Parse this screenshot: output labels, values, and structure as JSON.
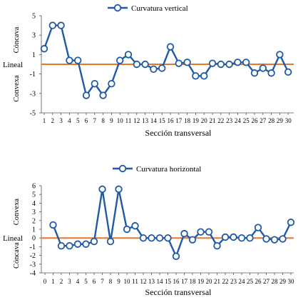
{
  "chart_data": [
    {
      "type": "line",
      "title": "Curvatura vertical",
      "xlabel": "Sección transversal",
      "ylabel_top": "Cóncava",
      "ylabel_mid": "Lineal",
      "ylabel_bottom": "Convexa",
      "ylim": [
        -5,
        5
      ],
      "yticks": [
        -5,
        -3,
        -1,
        1,
        3,
        5
      ],
      "categories": [
        1,
        2,
        3,
        4,
        5,
        6,
        7,
        8,
        9,
        10,
        11,
        12,
        13,
        14,
        15,
        16,
        17,
        18,
        19,
        20,
        21,
        22,
        23,
        24,
        25,
        26,
        27,
        28,
        29,
        30
      ],
      "series": [
        {
          "name": "Curvatura vertical",
          "color": "#1f5aa6",
          "values": [
            1.6,
            4.0,
            4.0,
            0.4,
            0.4,
            -3.2,
            -2.0,
            -3.2,
            -2.0,
            0.4,
            1.0,
            0.0,
            0.0,
            -0.5,
            -0.4,
            1.8,
            0.1,
            0.2,
            -1.2,
            -1.2,
            0.1,
            0.0,
            0.0,
            0.2,
            0.2,
            -0.9,
            -0.4,
            -0.9,
            1.0,
            -0.8
          ]
        }
      ],
      "reference_line": {
        "value": 0,
        "color": "#e8762b"
      },
      "grid": false
    },
    {
      "type": "line",
      "title": "Curvatura horizontal",
      "xlabel": "Sección transversal",
      "ylabel_top": "Convexa",
      "ylabel_mid": "Lineal",
      "ylabel_bottom": "Cóncava",
      "ylim": [
        -4,
        6
      ],
      "yticks": [
        -4,
        -3,
        -2,
        -1,
        0,
        1,
        2,
        3,
        4,
        5,
        6
      ],
      "categories": [
        0,
        1,
        2,
        3,
        4,
        5,
        6,
        7,
        8,
        9,
        10,
        11,
        12,
        13,
        14,
        15,
        16,
        17,
        18,
        19,
        20,
        21,
        22,
        23,
        24,
        25,
        26,
        27,
        28,
        29,
        30
      ],
      "series": [
        {
          "name": "Curvatura horizontal",
          "color": "#1f5aa6",
          "values": [
            null,
            1.5,
            -0.9,
            -0.9,
            -0.7,
            -0.7,
            -0.4,
            5.6,
            -0.4,
            5.6,
            1.0,
            1.4,
            0.0,
            0.0,
            0.0,
            0.0,
            -2.1,
            0.5,
            -0.2,
            0.7,
            0.7,
            -0.9,
            0.1,
            0.1,
            0.0,
            0.0,
            1.2,
            -0.1,
            -0.2,
            -0.1,
            1.8
          ]
        }
      ],
      "reference_line": {
        "value": 0,
        "color": "#e8762b"
      },
      "grid": false
    }
  ]
}
